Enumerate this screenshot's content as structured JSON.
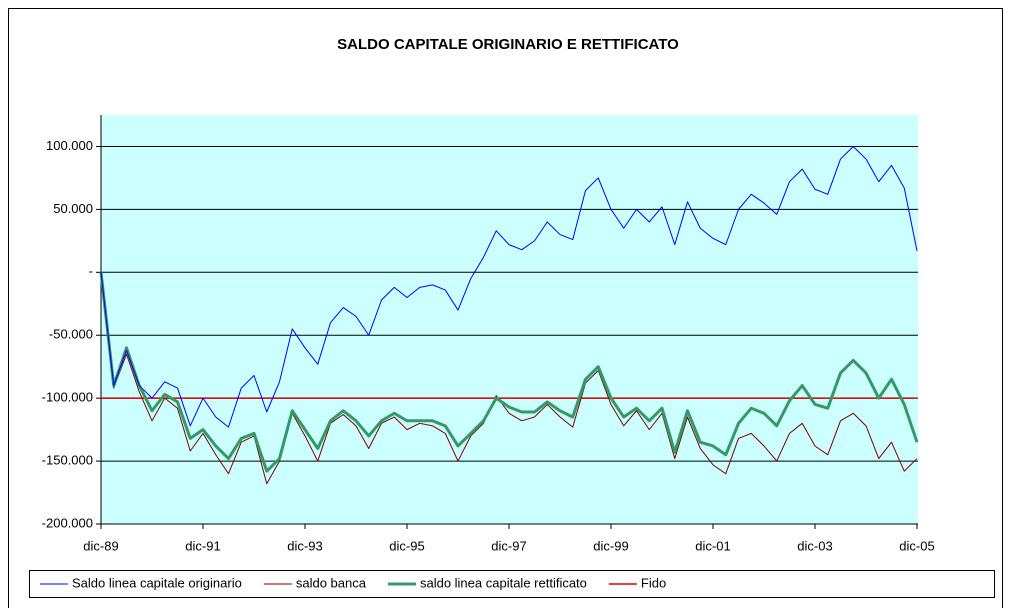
{
  "chart_data": {
    "type": "line",
    "title": "SALDO CAPITALE ORIGINARIO E RETTIFICATO",
    "categories": [
      "dic-89",
      null,
      null,
      null,
      null,
      null,
      null,
      null,
      "dic-91",
      null,
      null,
      null,
      null,
      null,
      null,
      null,
      "dic-93",
      null,
      null,
      null,
      null,
      null,
      null,
      null,
      "dic-95",
      null,
      null,
      null,
      null,
      null,
      null,
      null,
      "dic-97",
      null,
      null,
      null,
      null,
      null,
      null,
      null,
      "dic-99",
      null,
      null,
      null,
      null,
      null,
      null,
      null,
      "dic-01",
      null,
      null,
      null,
      null,
      null,
      null,
      null,
      "dic-03",
      null,
      null,
      null,
      null,
      null,
      null,
      null,
      "dic-05"
    ],
    "series": [
      {
        "name": "Saldo linea capitale originario",
        "color": "#0000ff",
        "width": 1,
        "values": [
          0,
          -90000,
          -62000,
          -90000,
          -100000,
          -87000,
          -92000,
          -122000,
          -100000,
          -115000,
          -123000,
          -92000,
          -82000,
          -111000,
          -87000,
          -45000,
          -60000,
          -73000,
          -40000,
          -28000,
          -35000,
          -50000,
          -22000,
          -12000,
          -20000,
          -12000,
          -10000,
          -14000,
          -30000,
          -5000,
          12000,
          33000,
          22000,
          18000,
          25000,
          40000,
          30000,
          26000,
          65000,
          75000,
          50000,
          35000,
          50000,
          40000,
          52000,
          22000,
          56000,
          35000,
          27000,
          22000,
          50000,
          62000,
          55000,
          46000,
          72000,
          82000,
          66000,
          62000,
          90000,
          100000,
          90000,
          72000,
          85000,
          67000,
          17000
        ]
      },
      {
        "name": "saldo banca",
        "color": "#800000",
        "width": 1,
        "values": [
          0,
          -92000,
          -65000,
          -95000,
          -118000,
          -100000,
          -108000,
          -142000,
          -128000,
          -145000,
          -160000,
          -135000,
          -130000,
          -168000,
          -150000,
          -112000,
          -130000,
          -150000,
          -120000,
          -113000,
          -122000,
          -140000,
          -120000,
          -115000,
          -125000,
          -120000,
          -122000,
          -128000,
          -150000,
          -130000,
          -120000,
          -98000,
          -112000,
          -118000,
          -115000,
          -105000,
          -115000,
          -123000,
          -88000,
          -78000,
          -105000,
          -122000,
          -110000,
          -125000,
          -112000,
          -148000,
          -115000,
          -140000,
          -153000,
          -160000,
          -132000,
          -128000,
          -138000,
          -150000,
          -128000,
          -120000,
          -138000,
          -145000,
          -118000,
          -112000,
          -122000,
          -148000,
          -135000,
          -158000,
          -148000
        ]
      },
      {
        "name": "saldo linea capitale rettificato",
        "color": "#339966",
        "width": 3,
        "values": [
          0,
          -90000,
          -60000,
          -90000,
          -110000,
          -97000,
          -103000,
          -132000,
          -125000,
          -138000,
          -148000,
          -132000,
          -128000,
          -158000,
          -148000,
          -110000,
          -125000,
          -140000,
          -118000,
          -110000,
          -118000,
          -130000,
          -118000,
          -112000,
          -118000,
          -118000,
          -118000,
          -122000,
          -138000,
          -128000,
          -118000,
          -100000,
          -107000,
          -111000,
          -111000,
          -103000,
          -110000,
          -115000,
          -85000,
          -75000,
          -100000,
          -115000,
          -108000,
          -118000,
          -108000,
          -143000,
          -110000,
          -135000,
          -138000,
          -145000,
          -120000,
          -108000,
          -112000,
          -122000,
          -102000,
          -90000,
          -105000,
          -108000,
          -80000,
          -70000,
          -80000,
          -100000,
          -85000,
          -105000,
          -135000
        ]
      },
      {
        "name": "Fido",
        "color": "#e00000",
        "width": 1.5,
        "values": [
          -100000,
          -100000,
          -100000,
          -100000,
          -100000,
          -100000,
          -100000,
          -100000,
          -100000,
          -100000,
          -100000,
          -100000,
          -100000,
          -100000,
          -100000,
          -100000,
          -100000,
          -100000,
          -100000,
          -100000,
          -100000,
          -100000,
          -100000,
          -100000,
          -100000,
          -100000,
          -100000,
          -100000,
          -100000,
          -100000,
          -100000,
          -100000,
          -100000,
          -100000,
          -100000,
          -100000,
          -100000,
          -100000,
          -100000,
          -100000,
          -100000,
          -100000,
          -100000,
          -100000,
          -100000,
          -100000,
          -100000,
          -100000,
          -100000,
          -100000,
          -100000,
          -100000,
          -100000,
          -100000,
          -100000,
          -100000,
          -100000,
          -100000,
          -100000,
          -100000,
          -100000,
          -100000,
          -100000,
          -100000,
          -100000
        ]
      }
    ],
    "ylim": [
      -200000,
      125000
    ],
    "yticks": [
      {
        "value": -200000,
        "label": "-200.000"
      },
      {
        "value": -150000,
        "label": "-150.000"
      },
      {
        "value": -100000,
        "label": "-100.000"
      },
      {
        "value": -50000,
        "label": "-50.000"
      },
      {
        "value": 0,
        "label": "-"
      },
      {
        "value": 50000,
        "label": "50.000"
      },
      {
        "value": 100000,
        "label": "100.000"
      }
    ],
    "grid": true,
    "legend": "bottom",
    "plot_background": "#ccffff"
  }
}
